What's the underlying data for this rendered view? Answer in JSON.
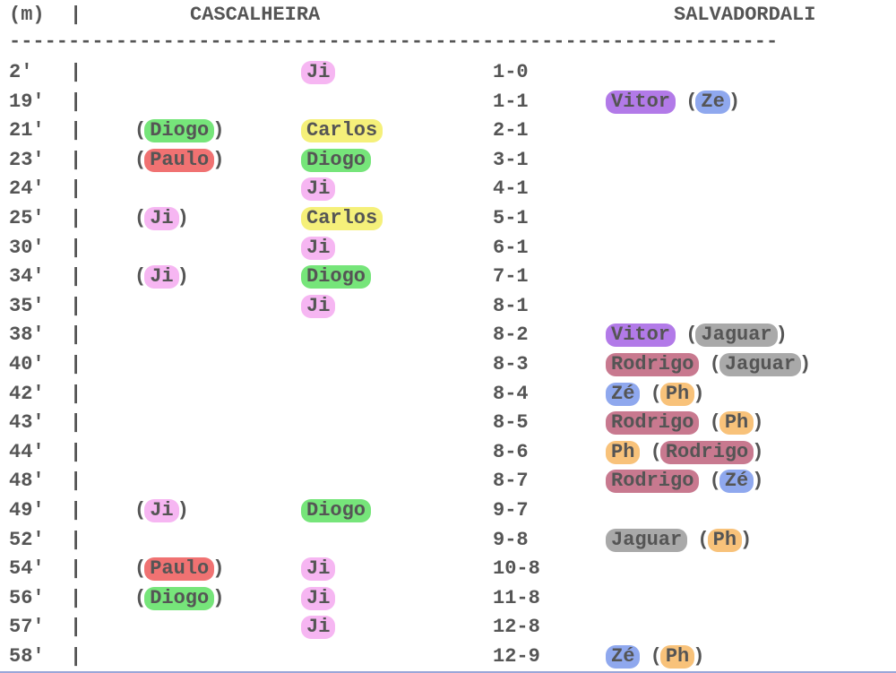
{
  "header": {
    "minute_label": "(m)",
    "bar": "|",
    "home_team": "CASCALHEIRA",
    "away_team": "SALVADORDALI",
    "separator": "-----------------------------------------------------------------"
  },
  "player_colors": {
    "Ji": "#f6b6f2",
    "Carlos": "#f5f07a",
    "Diogo": "#76e57a",
    "Paulo": "#f07272",
    "Vitor": "#b27ae8",
    "Ze": "#8fa8ee",
    "Zé": "#8fa8ee",
    "Jaguar": "#a9a9a9",
    "Rodrigo": "#c8798f",
    "Ph": "#f8c27a"
  },
  "rows": [
    {
      "minute": "2'",
      "bar": "|",
      "home_assist": "",
      "home_scorer": "Ji",
      "score": "1-0",
      "away_scorer": "",
      "away_assist": ""
    },
    {
      "minute": "19'",
      "bar": "|",
      "home_assist": "",
      "home_scorer": "",
      "score": "1-1",
      "away_scorer": "Vitor",
      "away_assist": "Ze"
    },
    {
      "minute": "21'",
      "bar": "|",
      "home_assist": "Diogo",
      "home_scorer": "Carlos",
      "score": "2-1",
      "away_scorer": "",
      "away_assist": ""
    },
    {
      "minute": "23'",
      "bar": "|",
      "home_assist": "Paulo",
      "home_scorer": "Diogo",
      "score": "3-1",
      "away_scorer": "",
      "away_assist": ""
    },
    {
      "minute": "24'",
      "bar": "|",
      "home_assist": "",
      "home_scorer": "Ji",
      "score": "4-1",
      "away_scorer": "",
      "away_assist": ""
    },
    {
      "minute": "25'",
      "bar": "|",
      "home_assist": "Ji",
      "home_scorer": "Carlos",
      "score": "5-1",
      "away_scorer": "",
      "away_assist": ""
    },
    {
      "minute": "30'",
      "bar": "|",
      "home_assist": "",
      "home_scorer": "Ji",
      "score": "6-1",
      "away_scorer": "",
      "away_assist": ""
    },
    {
      "minute": "34'",
      "bar": "|",
      "home_assist": "Ji",
      "home_scorer": "Diogo",
      "score": "7-1",
      "away_scorer": "",
      "away_assist": ""
    },
    {
      "minute": "35'",
      "bar": "|",
      "home_assist": "",
      "home_scorer": "Ji",
      "score": "8-1",
      "away_scorer": "",
      "away_assist": ""
    },
    {
      "minute": "38'",
      "bar": "|",
      "home_assist": "",
      "home_scorer": "",
      "score": "8-2",
      "away_scorer": "Vitor",
      "away_assist": "Jaguar"
    },
    {
      "minute": "40'",
      "bar": "|",
      "home_assist": "",
      "home_scorer": "",
      "score": "8-3",
      "away_scorer": "Rodrigo",
      "away_assist": "Jaguar"
    },
    {
      "minute": "42'",
      "bar": "|",
      "home_assist": "",
      "home_scorer": "",
      "score": "8-4",
      "away_scorer": "Zé",
      "away_assist": "Ph"
    },
    {
      "minute": "43'",
      "bar": "|",
      "home_assist": "",
      "home_scorer": "",
      "score": "8-5",
      "away_scorer": "Rodrigo",
      "away_assist": "Ph"
    },
    {
      "minute": "44'",
      "bar": "|",
      "home_assist": "",
      "home_scorer": "",
      "score": "8-6",
      "away_scorer": "Ph",
      "away_assist": "Rodrigo"
    },
    {
      "minute": "48'",
      "bar": "|",
      "home_assist": "",
      "home_scorer": "",
      "score": "8-7",
      "away_scorer": "Rodrigo",
      "away_assist": "Zé"
    },
    {
      "minute": "49'",
      "bar": "|",
      "home_assist": "Ji",
      "home_scorer": "Diogo",
      "score": "9-7",
      "away_scorer": "",
      "away_assist": ""
    },
    {
      "minute": "52'",
      "bar": "|",
      "home_assist": "",
      "home_scorer": "",
      "score": "9-8",
      "away_scorer": "Jaguar",
      "away_assist": "Ph"
    },
    {
      "minute": "54'",
      "bar": "|",
      "home_assist": "Paulo",
      "home_scorer": "Ji",
      "score": "10-8",
      "away_scorer": "",
      "away_assist": ""
    },
    {
      "minute": "56'",
      "bar": "|",
      "home_assist": "Diogo",
      "home_scorer": "Ji",
      "score": "11-8",
      "away_scorer": "",
      "away_assist": ""
    },
    {
      "minute": "57'",
      "bar": "|",
      "home_assist": "",
      "home_scorer": "Ji",
      "score": "12-8",
      "away_scorer": "",
      "away_assist": ""
    },
    {
      "minute": "58'",
      "bar": "|",
      "home_assist": "",
      "home_scorer": "",
      "score": "12-9",
      "away_scorer": "Zé",
      "away_assist": "Ph"
    }
  ]
}
